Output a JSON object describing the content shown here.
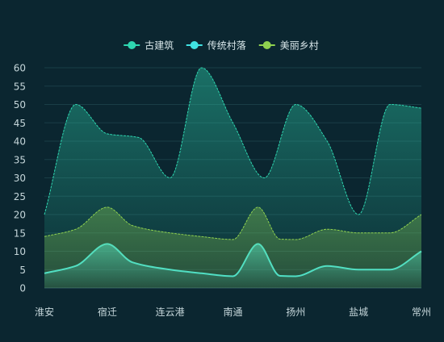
{
  "chart_data": {
    "type": "area",
    "categories": [
      "淮安",
      "宿迁",
      "连云港",
      "南通",
      "扬州",
      "盐城",
      "常州"
    ],
    "ylim": [
      0,
      60
    ],
    "yticks": [
      0,
      5,
      10,
      15,
      20,
      25,
      30,
      35,
      40,
      45,
      50,
      55,
      60
    ],
    "grid": true,
    "legend_position": "top-center",
    "series": [
      {
        "name": "古建筑",
        "color": "#2ed6b0",
        "x": [
          0,
          0.5,
          1,
          1.5,
          2,
          2.5,
          3,
          3.5,
          4,
          4.5,
          5,
          5.5,
          6
        ],
        "values": [
          20,
          50,
          42,
          41,
          30,
          60,
          45,
          30,
          50,
          40,
          20,
          50,
          49
        ]
      },
      {
        "name": "传统村落",
        "color": "#40e3e3",
        "x": [
          0,
          0.5,
          1,
          1.4,
          2,
          2.5,
          3,
          3.4,
          3.75,
          4,
          4.5,
          5,
          5.5,
          6
        ],
        "values": [
          4,
          6,
          12,
          7,
          5,
          4,
          3.2,
          12,
          3.3,
          3.2,
          6,
          5,
          5,
          10
        ]
      },
      {
        "name": "美丽乡村",
        "color": "#8fd14f",
        "x": [
          0,
          0.5,
          1,
          1.4,
          2,
          2.5,
          3,
          3.4,
          3.75,
          4,
          4.5,
          5,
          5.5,
          6
        ],
        "values": [
          14,
          16,
          22,
          17,
          15,
          14,
          13.2,
          22,
          13.3,
          13.2,
          16,
          15,
          15,
          20
        ]
      }
    ]
  }
}
